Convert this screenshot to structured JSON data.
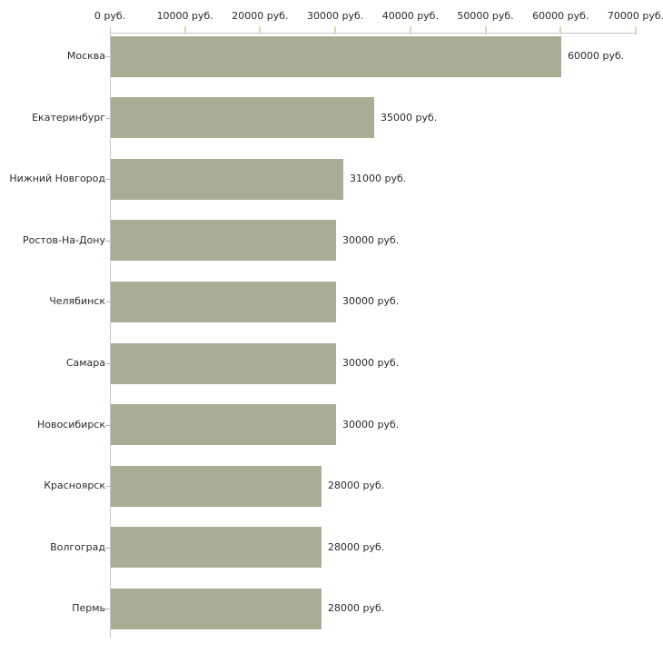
{
  "chart_data": {
    "type": "bar",
    "orientation": "horizontal",
    "title": "",
    "unit": "руб.",
    "categories": [
      "Москва",
      "Екатеринбург",
      "Нижний Новгород",
      "Ростов-На-Дону",
      "Челябинск",
      "Самара",
      "Новосибирск",
      "Красноярск",
      "Волгоград",
      "Пермь"
    ],
    "values": [
      60000,
      35000,
      31000,
      30000,
      30000,
      30000,
      30000,
      28000,
      28000,
      28000
    ],
    "value_labels": [
      "60000 руб.",
      "35000 руб.",
      "31000 руб.",
      "30000 руб.",
      "30000 руб.",
      "30000 руб.",
      "30000 руб.",
      "28000 руб.",
      "28000 руб.",
      "28000 руб."
    ],
    "x_ticks": [
      0,
      10000,
      20000,
      30000,
      40000,
      50000,
      60000,
      70000
    ],
    "x_tick_labels": [
      "0 руб.",
      "10000 руб.",
      "20000 руб.",
      "30000 руб.",
      "40000 руб.",
      "50000 руб.",
      "60000 руб.",
      "70000 руб."
    ],
    "xlim": [
      0,
      70000
    ],
    "grid": false,
    "legend": false,
    "colors": {
      "bar": "#a8ad96",
      "axis_line": "#c6c6c6",
      "x_tick": "#d9dab2",
      "y_tick": "#b8b8b8",
      "text": "#2b2b2b",
      "background": "#ffffff"
    }
  }
}
